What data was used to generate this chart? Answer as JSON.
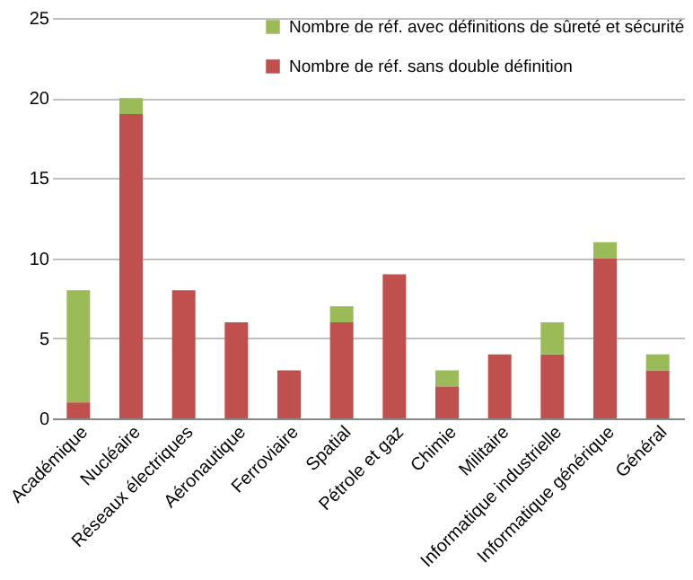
{
  "chart_data": {
    "type": "bar",
    "stacked": true,
    "categories": [
      "Académique",
      "Nucléaire",
      "Réseaux électriques",
      "Aéronautique",
      "Ferroviaire",
      "Spatial",
      "Pétrole et gaz",
      "Chimie",
      "Militaire",
      "Informatique industrielle",
      "Informatique générique",
      "Général"
    ],
    "series": [
      {
        "name": "Nombre de réf. sans double définition",
        "color": "#c0504d",
        "values": [
          1,
          19,
          8,
          6,
          3,
          6,
          9,
          2,
          4,
          4,
          10,
          3
        ]
      },
      {
        "name": "Nombre de réf. avec définitions de sûreté et sécurité",
        "color": "#9bbb59",
        "values": [
          7,
          1,
          0,
          0,
          0,
          1,
          0,
          1,
          0,
          2,
          1,
          1
        ]
      }
    ],
    "ylim": [
      0,
      25
    ],
    "yticks": [
      0,
      5,
      10,
      15,
      20,
      25
    ],
    "grid": "y",
    "legend": "top right"
  }
}
